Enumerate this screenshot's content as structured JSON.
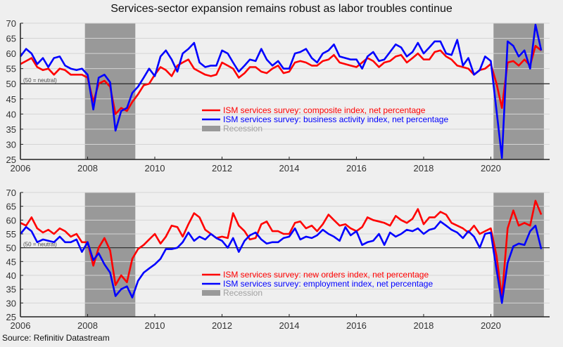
{
  "title": "Services-sector expansion remains robust as labor troubles continue",
  "source": "Source: Refinitiv Datastream",
  "chart_data": [
    {
      "type": "line",
      "title": "Services-sector expansion remains robust as labor troubles continue",
      "xlim": [
        2006,
        2021.75
      ],
      "ylim": [
        25,
        70
      ],
      "x_ticks": [
        "2006",
        "2008",
        "2010",
        "2012",
        "2014",
        "2016",
        "2018",
        "2020"
      ],
      "y_ticks": [
        "25",
        "30",
        "35",
        "40",
        "45",
        "50",
        "55",
        "60",
        "65",
        "70"
      ],
      "reference_line": {
        "value": 50,
        "label": "(50 = neutral)"
      },
      "recessions": [
        [
          2007.92,
          2009.42
        ],
        [
          2020.08,
          2021.58
        ]
      ],
      "recession_label": "Recession",
      "legend_position": "center",
      "series": [
        {
          "name": "ISM services survey: composite index, net percentage",
          "color": "#ff0000",
          "x": [
            2006.0,
            2006.17,
            2006.33,
            2006.5,
            2006.67,
            2006.83,
            2007.0,
            2007.17,
            2007.33,
            2007.5,
            2007.67,
            2007.83,
            2008.0,
            2008.17,
            2008.33,
            2008.5,
            2008.67,
            2008.83,
            2009.0,
            2009.17,
            2009.33,
            2009.5,
            2009.67,
            2009.83,
            2010.0,
            2010.17,
            2010.33,
            2010.5,
            2010.67,
            2010.83,
            2011.0,
            2011.17,
            2011.33,
            2011.5,
            2011.67,
            2011.83,
            2012.0,
            2012.17,
            2012.33,
            2012.5,
            2012.67,
            2012.83,
            2013.0,
            2013.17,
            2013.33,
            2013.5,
            2013.67,
            2013.83,
            2014.0,
            2014.17,
            2014.33,
            2014.5,
            2014.67,
            2014.83,
            2015.0,
            2015.17,
            2015.33,
            2015.5,
            2015.67,
            2015.83,
            2016.0,
            2016.17,
            2016.33,
            2016.5,
            2016.67,
            2016.83,
            2017.0,
            2017.17,
            2017.33,
            2017.5,
            2017.67,
            2017.83,
            2018.0,
            2018.17,
            2018.33,
            2018.5,
            2018.67,
            2018.83,
            2019.0,
            2019.17,
            2019.33,
            2019.5,
            2019.67,
            2019.83,
            2020.0,
            2020.17,
            2020.33,
            2020.5,
            2020.67,
            2020.83,
            2021.0,
            2021.17,
            2021.33,
            2021.5
          ],
          "values": [
            56.5,
            57.5,
            58.5,
            55.5,
            54.5,
            55,
            53,
            55,
            54.5,
            53,
            53,
            53,
            52,
            44,
            50,
            51,
            49,
            40,
            42,
            41,
            44,
            46.5,
            49.5,
            50,
            53,
            55.5,
            54.5,
            52.5,
            56,
            57,
            58,
            55,
            54,
            53,
            52.5,
            53,
            57,
            56,
            55,
            52,
            53.5,
            55.5,
            55.5,
            54,
            53.5,
            55,
            56,
            53.5,
            54,
            57,
            57.5,
            57,
            56,
            56,
            57.5,
            58,
            59.5,
            57,
            56.5,
            56,
            55.5,
            57,
            58.5,
            57.5,
            55.5,
            57,
            57.5,
            59,
            59.5,
            57,
            58.5,
            60,
            58,
            58,
            60.5,
            61,
            59,
            58,
            56,
            55.5,
            55,
            53,
            54.5,
            55,
            56.5,
            50,
            42,
            57,
            57.5,
            56,
            58,
            56,
            62.5,
            61
          ]
        },
        {
          "name": "ISM services survey: business activity index, net percentage",
          "color": "#0000ff",
          "x": [
            2006.0,
            2006.17,
            2006.33,
            2006.5,
            2006.67,
            2006.83,
            2007.0,
            2007.17,
            2007.33,
            2007.5,
            2007.67,
            2007.83,
            2008.0,
            2008.17,
            2008.33,
            2008.5,
            2008.67,
            2008.83,
            2009.0,
            2009.17,
            2009.33,
            2009.5,
            2009.67,
            2009.83,
            2010.0,
            2010.17,
            2010.33,
            2010.5,
            2010.67,
            2010.83,
            2011.0,
            2011.17,
            2011.33,
            2011.5,
            2011.67,
            2011.83,
            2012.0,
            2012.17,
            2012.33,
            2012.5,
            2012.67,
            2012.83,
            2013.0,
            2013.17,
            2013.33,
            2013.5,
            2013.67,
            2013.83,
            2014.0,
            2014.17,
            2014.33,
            2014.5,
            2014.67,
            2014.83,
            2015.0,
            2015.17,
            2015.33,
            2015.5,
            2015.67,
            2015.83,
            2016.0,
            2016.17,
            2016.33,
            2016.5,
            2016.67,
            2016.83,
            2017.0,
            2017.17,
            2017.33,
            2017.5,
            2017.67,
            2017.83,
            2018.0,
            2018.17,
            2018.33,
            2018.5,
            2018.67,
            2018.83,
            2019.0,
            2019.17,
            2019.33,
            2019.5,
            2019.67,
            2019.83,
            2020.0,
            2020.17,
            2020.33,
            2020.5,
            2020.67,
            2020.83,
            2021.0,
            2021.17,
            2021.33,
            2021.5
          ],
          "values": [
            59,
            61.5,
            60,
            56.5,
            58.5,
            55.5,
            58.5,
            59,
            56,
            55,
            54.5,
            55,
            53,
            41.5,
            52,
            53,
            50.5,
            34.5,
            41,
            42,
            47,
            49,
            52,
            55,
            52.5,
            59,
            61,
            58,
            54,
            60,
            61.5,
            63.5,
            57,
            55.5,
            56,
            56,
            61,
            60,
            57,
            54,
            56,
            58,
            57.5,
            61.5,
            58,
            56,
            57.5,
            55,
            55,
            60,
            60.5,
            61.5,
            58.5,
            57,
            60,
            61,
            63,
            59,
            58.5,
            58,
            58,
            55,
            59,
            60.5,
            57.5,
            58,
            60.5,
            63,
            62,
            59,
            60.5,
            63.5,
            60,
            62,
            64,
            64,
            60,
            59.5,
            64.5,
            56,
            58.5,
            53,
            54.5,
            59,
            57.5,
            41,
            25.5,
            64,
            62.5,
            59,
            61,
            55,
            69.5,
            61
          ]
        }
      ]
    },
    {
      "type": "line",
      "xlim": [
        2006,
        2021.75
      ],
      "ylim": [
        25,
        70
      ],
      "x_ticks": [
        "2006",
        "2008",
        "2010",
        "2012",
        "2014",
        "2016",
        "2018",
        "2020"
      ],
      "y_ticks": [
        "25",
        "30",
        "35",
        "40",
        "45",
        "50",
        "55",
        "60",
        "65",
        "70"
      ],
      "reference_line": {
        "value": 50,
        "label": "(50 = neutral)"
      },
      "recessions": [
        [
          2007.92,
          2009.42
        ],
        [
          2020.08,
          2021.58
        ]
      ],
      "recession_label": "Recession",
      "legend_position": "center",
      "series": [
        {
          "name": "ISM services survey: new orders index, net percentage",
          "color": "#ff0000",
          "x": [
            2006.0,
            2006.17,
            2006.33,
            2006.5,
            2006.67,
            2006.83,
            2007.0,
            2007.17,
            2007.33,
            2007.5,
            2007.67,
            2007.83,
            2008.0,
            2008.17,
            2008.33,
            2008.5,
            2008.67,
            2008.83,
            2009.0,
            2009.17,
            2009.33,
            2009.5,
            2009.67,
            2009.83,
            2010.0,
            2010.17,
            2010.33,
            2010.5,
            2010.67,
            2010.83,
            2011.0,
            2011.17,
            2011.33,
            2011.5,
            2011.67,
            2011.83,
            2012.0,
            2012.17,
            2012.33,
            2012.5,
            2012.67,
            2012.83,
            2013.0,
            2013.17,
            2013.33,
            2013.5,
            2013.67,
            2013.83,
            2014.0,
            2014.17,
            2014.33,
            2014.5,
            2014.67,
            2014.83,
            2015.0,
            2015.17,
            2015.33,
            2015.5,
            2015.67,
            2015.83,
            2016.0,
            2016.17,
            2016.33,
            2016.5,
            2016.67,
            2016.83,
            2017.0,
            2017.17,
            2017.33,
            2017.5,
            2017.67,
            2017.83,
            2018.0,
            2018.17,
            2018.33,
            2018.5,
            2018.67,
            2018.83,
            2019.0,
            2019.17,
            2019.33,
            2019.5,
            2019.67,
            2019.83,
            2020.0,
            2020.17,
            2020.33,
            2020.5,
            2020.67,
            2020.83,
            2021.0,
            2021.17,
            2021.33,
            2021.5
          ],
          "values": [
            59,
            58,
            61,
            57,
            55.5,
            56.5,
            55,
            57,
            56,
            54,
            55,
            52,
            52,
            43.5,
            50,
            53.5,
            49,
            36.5,
            40,
            37.5,
            46,
            49.5,
            51,
            53,
            55,
            51.5,
            54,
            58,
            57.5,
            54,
            58.5,
            62.5,
            61,
            56.5,
            55,
            53.5,
            54,
            53.5,
            62.5,
            58,
            56,
            53,
            53.5,
            58.5,
            59.5,
            56,
            56,
            55,
            55,
            59,
            59.5,
            57,
            58,
            56,
            58.5,
            62,
            60,
            58,
            58.5,
            57,
            56,
            57.5,
            61,
            60,
            59.5,
            59,
            58,
            61.5,
            60,
            59,
            60.5,
            64,
            58.5,
            61,
            61,
            63,
            62,
            59,
            58,
            57,
            55.5,
            58,
            55,
            56,
            57,
            47,
            32,
            57,
            63.5,
            58,
            59,
            58,
            67,
            62
          ]
        },
        {
          "name": "ISM services survey: employment index, net percentage",
          "color": "#0000ff",
          "x": [
            2006.0,
            2006.17,
            2006.33,
            2006.5,
            2006.67,
            2006.83,
            2007.0,
            2007.17,
            2007.33,
            2007.5,
            2007.67,
            2007.83,
            2008.0,
            2008.17,
            2008.33,
            2008.5,
            2008.67,
            2008.83,
            2009.0,
            2009.17,
            2009.33,
            2009.5,
            2009.67,
            2009.83,
            2010.0,
            2010.17,
            2010.33,
            2010.5,
            2010.67,
            2010.83,
            2011.0,
            2011.17,
            2011.33,
            2011.5,
            2011.67,
            2011.83,
            2012.0,
            2012.17,
            2012.33,
            2012.5,
            2012.67,
            2012.83,
            2013.0,
            2013.17,
            2013.33,
            2013.5,
            2013.67,
            2013.83,
            2014.0,
            2014.17,
            2014.33,
            2014.5,
            2014.67,
            2014.83,
            2015.0,
            2015.17,
            2015.33,
            2015.5,
            2015.67,
            2015.83,
            2016.0,
            2016.17,
            2016.33,
            2016.5,
            2016.67,
            2016.83,
            2017.0,
            2017.17,
            2017.33,
            2017.5,
            2017.67,
            2017.83,
            2018.0,
            2018.17,
            2018.33,
            2018.5,
            2018.67,
            2018.83,
            2019.0,
            2019.17,
            2019.33,
            2019.5,
            2019.67,
            2019.83,
            2020.0,
            2020.17,
            2020.33,
            2020.5,
            2020.67,
            2020.83,
            2021.0,
            2021.17,
            2021.33,
            2021.5
          ],
          "values": [
            55,
            57.5,
            56,
            52,
            53,
            52.5,
            52,
            54,
            52,
            52,
            53,
            48.5,
            52,
            45.5,
            48,
            44,
            41,
            32.5,
            35,
            36,
            32,
            38,
            41,
            42.5,
            44,
            46,
            49.5,
            49.5,
            50,
            52,
            55.5,
            52.5,
            54,
            53,
            55,
            53.5,
            52.5,
            50,
            53.5,
            48.5,
            52.5,
            54.5,
            55.5,
            53,
            51.5,
            52,
            52,
            53.5,
            54,
            57,
            53,
            54,
            53.5,
            54.5,
            56.5,
            55,
            54,
            52.5,
            57.5,
            54.5,
            56,
            51,
            52,
            52.5,
            55,
            51,
            55.5,
            54,
            55,
            56.5,
            56,
            57,
            55,
            56.5,
            57,
            59.5,
            58,
            56.5,
            55.5,
            53.5,
            56,
            54,
            50,
            55,
            55.5,
            42,
            30,
            44.5,
            50.5,
            51.5,
            51,
            56,
            58,
            49.5
          ]
        }
      ]
    }
  ]
}
